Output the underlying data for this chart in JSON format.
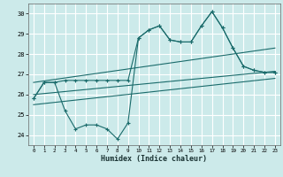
{
  "xlabel": "Humidex (Indice chaleur)",
  "bg_color": "#cceaea",
  "grid_color": "#ffffff",
  "line_color": "#1a6b6b",
  "xlim": [
    -0.5,
    23.5
  ],
  "ylim": [
    23.5,
    30.5
  ],
  "yticks": [
    24,
    25,
    26,
    27,
    28,
    29,
    30
  ],
  "xticks": [
    0,
    1,
    2,
    3,
    4,
    5,
    6,
    7,
    8,
    9,
    10,
    11,
    12,
    13,
    14,
    15,
    16,
    17,
    18,
    19,
    20,
    21,
    22,
    23
  ],
  "series1_x": [
    0,
    1,
    2,
    3,
    4,
    5,
    6,
    7,
    8,
    9,
    10,
    11,
    12,
    13,
    14,
    15,
    16,
    17,
    18,
    19,
    20,
    21,
    22,
    23
  ],
  "series1_y": [
    25.8,
    26.6,
    26.6,
    26.7,
    26.7,
    26.7,
    26.7,
    26.7,
    26.7,
    26.7,
    28.8,
    29.2,
    29.4,
    28.7,
    28.6,
    28.6,
    29.4,
    30.1,
    29.3,
    28.3,
    27.4,
    27.2,
    27.1,
    27.1
  ],
  "series2_x": [
    0,
    1,
    2,
    3,
    4,
    5,
    6,
    7,
    8,
    9,
    10,
    11,
    12,
    13,
    14,
    15,
    16,
    17,
    18,
    19,
    20,
    21,
    22,
    23
  ],
  "series2_y": [
    25.8,
    26.6,
    26.6,
    25.2,
    24.3,
    24.5,
    24.5,
    24.3,
    23.8,
    24.6,
    28.8,
    29.2,
    29.4,
    28.7,
    28.6,
    28.6,
    29.4,
    30.1,
    29.3,
    28.3,
    27.4,
    27.2,
    27.1,
    27.1
  ],
  "line1_x": [
    0,
    23
  ],
  "line1_y": [
    26.0,
    27.15
  ],
  "line2_x": [
    0,
    23
  ],
  "line2_y": [
    26.6,
    28.3
  ],
  "line3_x": [
    0,
    23
  ],
  "line3_y": [
    25.5,
    26.8
  ]
}
